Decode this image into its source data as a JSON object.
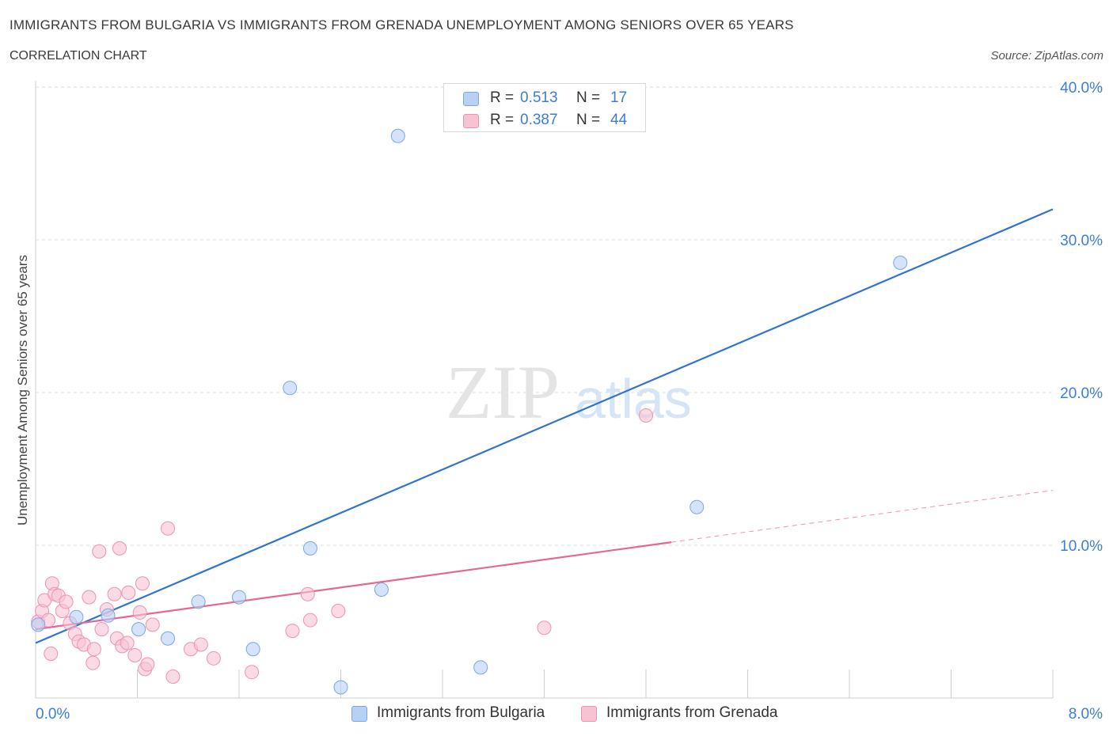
{
  "header": {
    "title": "IMMIGRANTS FROM BULGARIA VS IMMIGRANTS FROM GRENADA UNEMPLOYMENT AMONG SENIORS OVER 65 YEARS",
    "subtitle": "CORRELATION CHART",
    "source": "Source: ZipAtlas.com"
  },
  "watermark": {
    "zip": "ZIP",
    "atlas": "atlas"
  },
  "legend": {
    "r_label": "R =",
    "n_label": "N =",
    "rows": [
      {
        "r": "0.513",
        "n": "17"
      },
      {
        "r": "0.387",
        "n": "44"
      }
    ]
  },
  "colors": {
    "bulgaria_fill": "#b8d1f3",
    "bulgaria_stroke": "#7aa7e0",
    "bulgaria_line": "#2f74d0",
    "grenada_fill": "#f7c3d3",
    "grenada_stroke": "#ee92b0",
    "grenada_line": "#e4688f",
    "grid": "#dcdcdc",
    "axis_text": "#3b7dd8"
  },
  "chart_data": {
    "type": "scatter",
    "title": "IMMIGRANTS FROM BULGARIA VS IMMIGRANTS FROM GRENADA UNEMPLOYMENT AMONG SENIORS OVER 65 YEARS",
    "subtitle": "CORRELATION CHART",
    "xlabel": "",
    "ylabel": "Unemployment Among Seniors over 65 years",
    "xlim": [
      0,
      8
    ],
    "ylim": [
      0,
      40
    ],
    "x_tick_labels": [
      "0.0%",
      "8.0%"
    ],
    "y_ticks": [
      10,
      20,
      30,
      40
    ],
    "y_tick_labels": [
      "10.0%",
      "20.0%",
      "30.0%",
      "40.0%"
    ],
    "grid": true,
    "legend_position": "top-center",
    "series": [
      {
        "name": "Immigrants from Bulgaria",
        "r": 0.513,
        "n": 17,
        "points": [
          [
            0.02,
            4.8
          ],
          [
            0.32,
            5.3
          ],
          [
            0.57,
            5.4
          ],
          [
            0.81,
            4.5
          ],
          [
            1.04,
            3.9
          ],
          [
            1.28,
            6.3
          ],
          [
            1.6,
            6.6
          ],
          [
            1.71,
            3.2
          ],
          [
            2.0,
            20.3
          ],
          [
            2.16,
            9.8
          ],
          [
            2.4,
            0.7
          ],
          [
            2.72,
            7.1
          ],
          [
            2.85,
            36.8
          ],
          [
            3.4,
            38.4
          ],
          [
            3.5,
            2.0
          ],
          [
            5.2,
            12.5
          ],
          [
            6.8,
            28.5
          ]
        ],
        "trend": {
          "x0": 0.0,
          "y0": 3.6,
          "x1": 8.0,
          "y1": 32.0
        }
      },
      {
        "name": "Immigrants from Grenada",
        "r": 0.387,
        "n": 44,
        "points": [
          [
            0.02,
            5.0
          ],
          [
            0.05,
            5.7
          ],
          [
            0.07,
            6.4
          ],
          [
            0.1,
            5.1
          ],
          [
            0.13,
            7.5
          ],
          [
            0.15,
            6.8
          ],
          [
            0.18,
            6.7
          ],
          [
            0.21,
            5.7
          ],
          [
            0.24,
            6.3
          ],
          [
            0.27,
            4.9
          ],
          [
            0.31,
            4.2
          ],
          [
            0.34,
            3.7
          ],
          [
            0.38,
            3.5
          ],
          [
            0.42,
            6.6
          ],
          [
            0.45,
            2.3
          ],
          [
            0.46,
            3.2
          ],
          [
            0.5,
            9.6
          ],
          [
            0.52,
            4.5
          ],
          [
            0.56,
            5.8
          ],
          [
            0.62,
            6.8
          ],
          [
            0.64,
            3.9
          ],
          [
            0.66,
            9.8
          ],
          [
            0.68,
            3.4
          ],
          [
            0.72,
            3.6
          ],
          [
            0.73,
            6.9
          ],
          [
            0.78,
            2.8
          ],
          [
            0.82,
            5.6
          ],
          [
            0.84,
            7.5
          ],
          [
            0.86,
            1.9
          ],
          [
            0.88,
            2.2
          ],
          [
            0.92,
            4.8
          ],
          [
            1.04,
            11.1
          ],
          [
            1.08,
            1.4
          ],
          [
            1.22,
            3.2
          ],
          [
            1.3,
            3.5
          ],
          [
            1.4,
            2.6
          ],
          [
            1.7,
            1.7
          ],
          [
            2.02,
            4.4
          ],
          [
            2.14,
            6.8
          ],
          [
            2.16,
            5.1
          ],
          [
            2.38,
            5.7
          ],
          [
            0.12,
            2.9
          ],
          [
            4.0,
            4.6
          ],
          [
            4.8,
            18.5
          ]
        ],
        "trend": {
          "x0": 0.0,
          "y0": 4.5,
          "x1": 5.0,
          "y1": 10.2
        },
        "trend_extension": {
          "x0": 5.0,
          "y0": 10.2,
          "x1": 8.0,
          "y1": 13.6
        }
      }
    ]
  }
}
